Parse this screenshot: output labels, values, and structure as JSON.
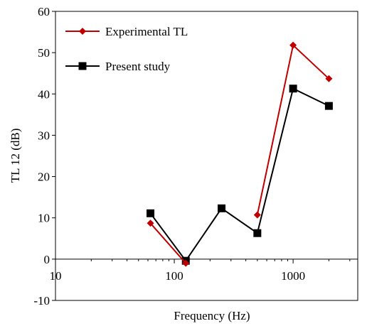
{
  "chart_data": {
    "type": "line",
    "xlabel": "Frequency (Hz)",
    "ylabel": "TL 12 (dB)",
    "xscale": "log",
    "xlim": [
      10,
      3500
    ],
    "ylim": [
      -10,
      60
    ],
    "y_ticks": [
      -10,
      0,
      10,
      20,
      30,
      40,
      50,
      60
    ],
    "y_tick_labels": [
      "-10",
      "0",
      "10",
      "20",
      "30",
      "40",
      "50",
      "60"
    ],
    "x_ticks": [
      10,
      100,
      1000
    ],
    "x_tick_labels": [
      "10",
      "100",
      "1000"
    ],
    "grid": false,
    "legend_position": "top-left",
    "series": [
      {
        "name": "Experimental TL",
        "color": "#c00000",
        "marker": "diamond",
        "segments": [
          [
            [
              63,
              8.7
            ],
            [
              125,
              -1.0
            ]
          ],
          [
            [
              500,
              10.7
            ],
            [
              1000,
              51.8
            ],
            [
              2000,
              43.7
            ]
          ]
        ]
      },
      {
        "name": "Present study",
        "color": "#000000",
        "marker": "square",
        "segments": [
          [
            [
              63,
              11.1
            ],
            [
              125,
              -0.4
            ],
            [
              250,
              12.3
            ],
            [
              500,
              6.3
            ],
            [
              1000,
              41.3
            ],
            [
              2000,
              37.1
            ]
          ]
        ]
      }
    ]
  }
}
